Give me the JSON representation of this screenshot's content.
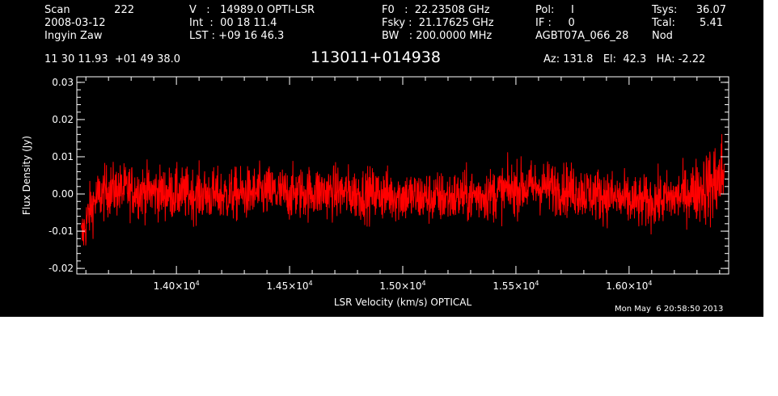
{
  "header": {
    "scan_label": "Scan",
    "scan_value": "222",
    "date": "2008-03-12",
    "observer": "Ingyin Zaw",
    "velocity": "V   :   14989.0 OPTI-LSR",
    "int_time": "Int  :  00 18 11.4",
    "lst": "LST : +09 16 46.3",
    "f0": "F0   :  22.23508 GHz",
    "fsky": "Fsky :  21.17625 GHz",
    "bw": "BW   : 200.0000 MHz",
    "pol": "Pol:     I",
    "if_num": "IF :     0",
    "project": "AGBT07A_066_28",
    "tsys_label": "Tsys:",
    "tsys_value": "36.07",
    "tcal_label": "Tcal:",
    "tcal_value": "5.41",
    "mode": "Nod",
    "coords": "11 30 11.93  +01 49 38.0",
    "source": "113011+014938",
    "az_el_ha": "Az: 131.8   El:  42.3   HA: -2.22"
  },
  "timestamp": "Mon May  6 20:58:50 2013",
  "chart_data": {
    "type": "line",
    "title": "113011+014938",
    "xlabel": "LSR Velocity (km/s) OPTICAL",
    "ylabel": "Flux Density (Jy)",
    "xlim": [
      13560,
      16440
    ],
    "ylim": [
      -0.0215,
      0.0315
    ],
    "xticks": [
      {
        "value": 14000,
        "mant": "1.40×10",
        "exp": "4"
      },
      {
        "value": 14500,
        "mant": "1.45×10",
        "exp": "4"
      },
      {
        "value": 15000,
        "mant": "1.50×10",
        "exp": "4"
      },
      {
        "value": 15500,
        "mant": "1.55×10",
        "exp": "4"
      },
      {
        "value": 16000,
        "mant": "1.60×10",
        "exp": "4"
      }
    ],
    "yticks": [
      {
        "value": -0.02,
        "label": "-0.02"
      },
      {
        "value": -0.01,
        "label": "-0.01"
      },
      {
        "value": 0.0,
        "label": "0.00"
      },
      {
        "value": 0.01,
        "label": "0.01"
      },
      {
        "value": 0.02,
        "label": "0.02"
      },
      {
        "value": 0.03,
        "label": "0.03"
      }
    ],
    "series": [
      {
        "color": "#ff0000",
        "x": [
          13580,
          13600,
          13620,
          13650,
          13700,
          13800,
          13900,
          14000,
          14100,
          14200,
          14300,
          14400,
          14500,
          14600,
          14700,
          14800,
          14900,
          15000,
          15100,
          15200,
          15300,
          15400,
          15500,
          15600,
          15700,
          15800,
          15900,
          16000,
          16050,
          16100,
          16150,
          16200,
          16250,
          16300,
          16350,
          16380,
          16400,
          16420
        ],
        "y": [
          -0.012,
          -0.008,
          -0.004,
          -0.001,
          0.001,
          0.001,
          0.0005,
          0.0,
          0.0,
          -0.0005,
          0.0,
          0.0005,
          0.0,
          0.0005,
          0.0005,
          0.0,
          0.0,
          -0.0005,
          -0.001,
          -0.001,
          -0.0005,
          0.0,
          0.0015,
          0.002,
          0.0015,
          0.0005,
          -0.0005,
          -0.002,
          -0.0025,
          -0.002,
          -0.0015,
          -0.001,
          0.0,
          0.001,
          0.002,
          0.003,
          0.004,
          0.006
        ],
        "noise_rms": 0.0035
      }
    ],
    "grid": false,
    "legend": "none"
  }
}
